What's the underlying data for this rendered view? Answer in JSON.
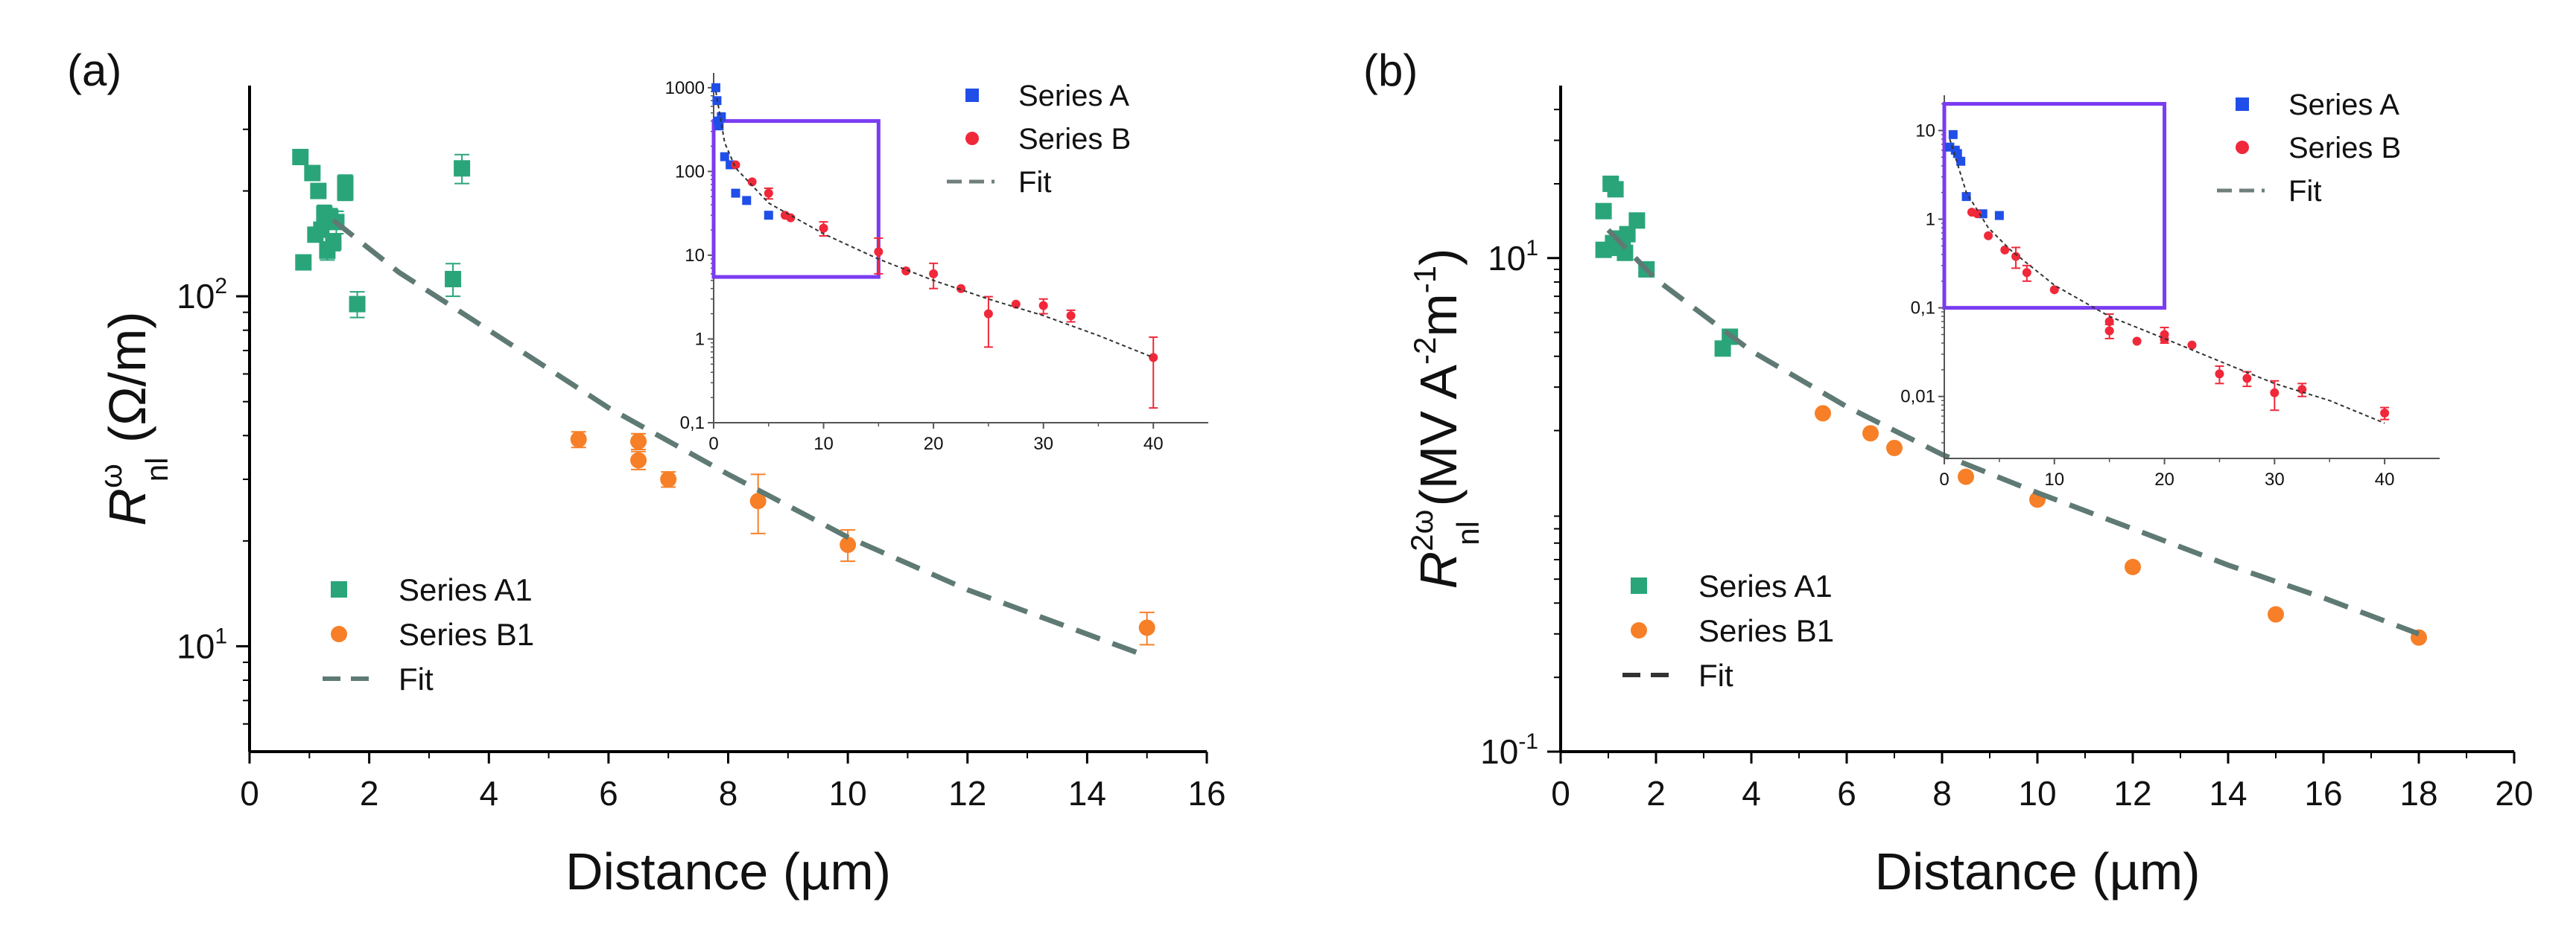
{
  "chart_data": [
    {
      "panel": "(a)",
      "type": "scatter",
      "x_scale": "linear",
      "y_scale": "log",
      "xlabel": "Distance (µm)",
      "ylabel_base": "R",
      "ylabel_sup": "ω",
      "ylabel_sub": "nl",
      "ylabel_unit": " (Ω/m)",
      "xlim": [
        0,
        16
      ],
      "ylim": [
        5,
        400
      ],
      "xticks": [
        0,
        2,
        4,
        6,
        8,
        10,
        12,
        14,
        16
      ],
      "xtick_labels": [
        "0",
        "2",
        "4",
        "6",
        "8",
        "10",
        "12",
        "14",
        "16"
      ],
      "yticks": [
        {
          "value": 10,
          "base": "10",
          "exp": "1"
        },
        {
          "value": 100,
          "base": "10",
          "exp": "2"
        }
      ],
      "legend": {
        "entries": [
          {
            "name": "Series  A1",
            "kind": "square",
            "color": "#2aa57a"
          },
          {
            "name": "Series  B1",
            "kind": "circle",
            "color": "#f77f27"
          },
          {
            "name": "Fit",
            "kind": "dash",
            "color": "#5f7a74"
          }
        ]
      },
      "series": [
        {
          "name": "Series  A1",
          "marker": "square",
          "color": "#2aa57a",
          "points": [
            {
              "x": 0.85,
              "y": 250,
              "err": 0
            },
            {
              "x": 0.9,
              "y": 125,
              "err": 0
            },
            {
              "x": 1.05,
              "y": 225,
              "err": 0
            },
            {
              "x": 1.1,
              "y": 150,
              "err": 0
            },
            {
              "x": 1.15,
              "y": 200,
              "err": 0
            },
            {
              "x": 1.2,
              "y": 155,
              "err": 0
            },
            {
              "x": 1.25,
              "y": 172,
              "err": 10
            },
            {
              "x": 1.3,
              "y": 135,
              "err": 8
            },
            {
              "x": 1.35,
              "y": 168,
              "err": 10
            },
            {
              "x": 1.4,
              "y": 143,
              "err": 8
            },
            {
              "x": 1.45,
              "y": 163,
              "err": 12
            },
            {
              "x": 1.6,
              "y": 210,
              "err": 12
            },
            {
              "x": 1.6,
              "y": 198,
              "err": 10
            },
            {
              "x": 1.8,
              "y": 95,
              "err": 8
            },
            {
              "x": 3.4,
              "y": 112,
              "err": 12
            },
            {
              "x": 3.55,
              "y": 232,
              "err": 22
            }
          ]
        },
        {
          "name": "Series  B1",
          "marker": "circle",
          "color": "#f77f27",
          "points": [
            {
              "x": 5.5,
              "y": 39,
              "err": 2
            },
            {
              "x": 6.5,
              "y": 38.5,
              "err": 2
            },
            {
              "x": 6.5,
              "y": 34,
              "err": 2
            },
            {
              "x": 7.0,
              "y": 30,
              "err": 1.5
            },
            {
              "x": 8.5,
              "y": 26,
              "err": 5
            },
            {
              "x": 10.0,
              "y": 19.5,
              "err": 2
            },
            {
              "x": 15.0,
              "y": 11.3,
              "err": 1.2
            }
          ]
        },
        {
          "name": "Fit",
          "marker": "line",
          "color": "#5f7a74",
          "points": [
            {
              "x": 1.4,
              "y": 165
            },
            {
              "x": 2.5,
              "y": 117
            },
            {
              "x": 4,
              "y": 80
            },
            {
              "x": 6,
              "y": 48
            },
            {
              "x": 8,
              "y": 31
            },
            {
              "x": 10,
              "y": 20.5
            },
            {
              "x": 12,
              "y": 14.5
            },
            {
              "x": 14.9,
              "y": 9.5
            }
          ]
        }
      ],
      "inset": {
        "x_scale": "linear",
        "y_scale": "log",
        "xlim": [
          0,
          45
        ],
        "ylim": [
          0.1,
          1500
        ],
        "xticks": [
          0,
          10,
          20,
          30,
          40
        ],
        "xtick_labels": [
          "0",
          "10",
          "20",
          "30",
          "40"
        ],
        "yticks": [
          0.1,
          1,
          10,
          100,
          1000
        ],
        "ytick_labels": [
          "0,1",
          "1",
          "10",
          "100",
          "1000"
        ],
        "highlight_box": {
          "x0": 0,
          "x1": 15,
          "y0": 5.5,
          "y1": 400
        },
        "legend": {
          "entries": [
            {
              "name": "Series  A",
              "kind": "square",
              "color": "#1f4ee8"
            },
            {
              "name": "Series  B",
              "kind": "circle",
              "color": "#f0283a"
            },
            {
              "name": "Fit",
              "kind": "dash",
              "color": "#6e7f7c"
            }
          ]
        },
        "series": [
          {
            "name": "Series  A",
            "marker": "square",
            "color": "#1f4ee8",
            "points": [
              {
                "x": 0.2,
                "y": 1000
              },
              {
                "x": 0.3,
                "y": 700
              },
              {
                "x": 0.4,
                "y": 400
              },
              {
                "x": 0.5,
                "y": 350
              },
              {
                "x": 0.7,
                "y": 450
              },
              {
                "x": 1.0,
                "y": 150
              },
              {
                "x": 1.5,
                "y": 120
              },
              {
                "x": 2.0,
                "y": 55
              },
              {
                "x": 3.0,
                "y": 45
              },
              {
                "x": 5.0,
                "y": 30
              }
            ]
          },
          {
            "name": "Series  B",
            "marker": "circle",
            "color": "#f0283a",
            "points": [
              {
                "x": 2.0,
                "y": 120,
                "err": 0
              },
              {
                "x": 3.5,
                "y": 75,
                "err": 0
              },
              {
                "x": 5.0,
                "y": 55,
                "err": 8
              },
              {
                "x": 6.5,
                "y": 30,
                "err": 0
              },
              {
                "x": 7.0,
                "y": 28,
                "err": 0
              },
              {
                "x": 10.0,
                "y": 21,
                "err": 4
              },
              {
                "x": 15.0,
                "y": 11,
                "err": 5
              },
              {
                "x": 17.5,
                "y": 6.5,
                "err": 0
              },
              {
                "x": 20.0,
                "y": 6,
                "err": 2
              },
              {
                "x": 22.5,
                "y": 4,
                "err": 0
              },
              {
                "x": 25.0,
                "y": 2,
                "err": 1.2
              },
              {
                "x": 27.5,
                "y": 2.6,
                "err": 0
              },
              {
                "x": 30.0,
                "y": 2.5,
                "err": 0.5
              },
              {
                "x": 32.5,
                "y": 1.9,
                "err": 0.3
              },
              {
                "x": 40.0,
                "y": 0.6,
                "err": 0.45
              }
            ]
          },
          {
            "name": "Fit",
            "marker": "line",
            "color": "#333333",
            "points": [
              {
                "x": 0.2,
                "y": 900
              },
              {
                "x": 1,
                "y": 220
              },
              {
                "x": 2,
                "y": 110
              },
              {
                "x": 5,
                "y": 42
              },
              {
                "x": 10,
                "y": 18
              },
              {
                "x": 15,
                "y": 9
              },
              {
                "x": 20,
                "y": 5
              },
              {
                "x": 25,
                "y": 3
              },
              {
                "x": 30,
                "y": 1.9
              },
              {
                "x": 35,
                "y": 1.1
              },
              {
                "x": 40,
                "y": 0.6
              }
            ]
          }
        ]
      }
    },
    {
      "panel": "(b)",
      "type": "scatter",
      "x_scale": "linear",
      "y_scale": "log",
      "xlabel": "Distance (µm)",
      "ylabel_base": "R",
      "ylabel_sup": "2ω",
      "ylabel_sub": "nl",
      "ylabel_unit_pre": " (MV A",
      "ylabel_unit_exp1": "-2",
      "ylabel_unit_mid": "m",
      "ylabel_unit_exp2": "-1",
      "ylabel_unit_post": ")",
      "xlim": [
        0,
        20
      ],
      "ylim": [
        0.1,
        50
      ],
      "xticks": [
        0,
        2,
        4,
        6,
        8,
        10,
        12,
        14,
        16,
        18,
        20
      ],
      "xtick_labels": [
        "0",
        "2",
        "4",
        "6",
        "8",
        "10",
        "12",
        "14",
        "16",
        "18",
        "20"
      ],
      "yticks": [
        {
          "value": 0.1,
          "base": "10",
          "exp": "-1"
        },
        {
          "value": 10,
          "base": "10",
          "exp": "1"
        }
      ],
      "legend": {
        "entries": [
          {
            "name": "Series  A1",
            "kind": "square",
            "color": "#2aa57a"
          },
          {
            "name": "Series  B1",
            "kind": "circle",
            "color": "#f77f27"
          },
          {
            "name": "Fit",
            "kind": "dash",
            "color": "#333333"
          }
        ]
      },
      "series": [
        {
          "name": "Series  A1",
          "marker": "square",
          "color": "#2aa57a",
          "points": [
            {
              "x": 0.9,
              "y": 15.5
            },
            {
              "x": 0.9,
              "y": 10.8
            },
            {
              "x": 1.05,
              "y": 20
            },
            {
              "x": 1.1,
              "y": 11.5
            },
            {
              "x": 1.15,
              "y": 19
            },
            {
              "x": 1.2,
              "y": 11
            },
            {
              "x": 1.25,
              "y": 12
            },
            {
              "x": 1.3,
              "y": 11.5
            },
            {
              "x": 1.35,
              "y": 10.5
            },
            {
              "x": 1.4,
              "y": 12.5
            },
            {
              "x": 1.6,
              "y": 14.2
            },
            {
              "x": 1.8,
              "y": 9
            },
            {
              "x": 3.4,
              "y": 4.3
            },
            {
              "x": 3.55,
              "y": 4.8
            }
          ]
        },
        {
          "name": "Series  B1",
          "marker": "circle",
          "color": "#f77f27",
          "points": [
            {
              "x": 5.5,
              "y": 2.35
            },
            {
              "x": 6.5,
              "y": 1.95
            },
            {
              "x": 7.0,
              "y": 1.7
            },
            {
              "x": 8.5,
              "y": 1.3
            },
            {
              "x": 10.0,
              "y": 1.05
            },
            {
              "x": 12.0,
              "y": 0.56
            },
            {
              "x": 15.0,
              "y": 0.36
            },
            {
              "x": 18.0,
              "y": 0.29
            }
          ]
        },
        {
          "name": "Fit",
          "marker": "line",
          "color": "#5f7a74",
          "points": [
            {
              "x": 1.0,
              "y": 13
            },
            {
              "x": 2,
              "y": 8.2
            },
            {
              "x": 4,
              "y": 4.2
            },
            {
              "x": 6,
              "y": 2.5
            },
            {
              "x": 8,
              "y": 1.6
            },
            {
              "x": 10,
              "y": 1.12
            },
            {
              "x": 12,
              "y": 0.8
            },
            {
              "x": 14,
              "y": 0.57
            },
            {
              "x": 16,
              "y": 0.42
            },
            {
              "x": 18,
              "y": 0.3
            }
          ]
        }
      ],
      "inset": {
        "x_scale": "linear",
        "y_scale": "log",
        "xlim": [
          0,
          45
        ],
        "ylim": [
          0.002,
          25
        ],
        "xticks": [
          0,
          10,
          20,
          30,
          40
        ],
        "xtick_labels": [
          "0",
          "10",
          "20",
          "30",
          "40"
        ],
        "yticks": [
          0.01,
          0.1,
          1,
          10
        ],
        "ytick_labels": [
          "0,01",
          "0,1",
          "1",
          "10"
        ],
        "highlight_box": {
          "x0": 0,
          "x1": 20,
          "y0": 0.1,
          "y1": 20
        },
        "legend": {
          "entries": [
            {
              "name": "Series  A",
              "kind": "square",
              "color": "#1f4ee8"
            },
            {
              "name": "Series  B",
              "kind": "circle",
              "color": "#f0283a"
            },
            {
              "name": "Fit",
              "kind": "dash",
              "color": "#6e7f7c"
            }
          ]
        },
        "series": [
          {
            "name": "Series  A",
            "marker": "square",
            "color": "#1f4ee8",
            "points": [
              {
                "x": 0.5,
                "y": 6.5
              },
              {
                "x": 0.8,
                "y": 9
              },
              {
                "x": 1.0,
                "y": 6
              },
              {
                "x": 1.2,
                "y": 5.5
              },
              {
                "x": 1.5,
                "y": 4.5
              },
              {
                "x": 2.0,
                "y": 1.8
              },
              {
                "x": 3.5,
                "y": 1.15
              },
              {
                "x": 5.0,
                "y": 1.1
              }
            ]
          },
          {
            "name": "Series  B",
            "marker": "circle",
            "color": "#f0283a",
            "points": [
              {
                "x": 2.5,
                "y": 1.2,
                "err": 0
              },
              {
                "x": 3.0,
                "y": 1.15,
                "err": 0
              },
              {
                "x": 4.0,
                "y": 0.65,
                "err": 0
              },
              {
                "x": 5.5,
                "y": 0.45,
                "err": 0
              },
              {
                "x": 6.5,
                "y": 0.38,
                "err": 0.1
              },
              {
                "x": 7.5,
                "y": 0.25,
                "err": 0.05
              },
              {
                "x": 10.0,
                "y": 0.16,
                "err": 0
              },
              {
                "x": 15.0,
                "y": 0.07,
                "err": 0.015
              },
              {
                "x": 15.0,
                "y": 0.055,
                "err": 0.01
              },
              {
                "x": 17.5,
                "y": 0.042,
                "err": 0
              },
              {
                "x": 20.0,
                "y": 0.05,
                "err": 0.01
              },
              {
                "x": 20.0,
                "y": 0.044,
                "err": 0
              },
              {
                "x": 22.5,
                "y": 0.038,
                "err": 0
              },
              {
                "x": 25.0,
                "y": 0.018,
                "err": 0.004
              },
              {
                "x": 27.5,
                "y": 0.016,
                "err": 0.003
              },
              {
                "x": 30.0,
                "y": 0.011,
                "err": 0.004
              },
              {
                "x": 32.5,
                "y": 0.012,
                "err": 0.002
              },
              {
                "x": 40.0,
                "y": 0.0065,
                "err": 0.001
              }
            ]
          },
          {
            "name": "Fit",
            "marker": "line",
            "color": "#333333",
            "points": [
              {
                "x": 0.5,
                "y": 8
              },
              {
                "x": 2,
                "y": 2
              },
              {
                "x": 4,
                "y": 0.8
              },
              {
                "x": 6,
                "y": 0.45
              },
              {
                "x": 10,
                "y": 0.18
              },
              {
                "x": 15,
                "y": 0.08
              },
              {
                "x": 20,
                "y": 0.045
              },
              {
                "x": 25,
                "y": 0.025
              },
              {
                "x": 30,
                "y": 0.014
              },
              {
                "x": 35,
                "y": 0.009
              },
              {
                "x": 40,
                "y": 0.005
              }
            ]
          }
        ]
      }
    }
  ]
}
